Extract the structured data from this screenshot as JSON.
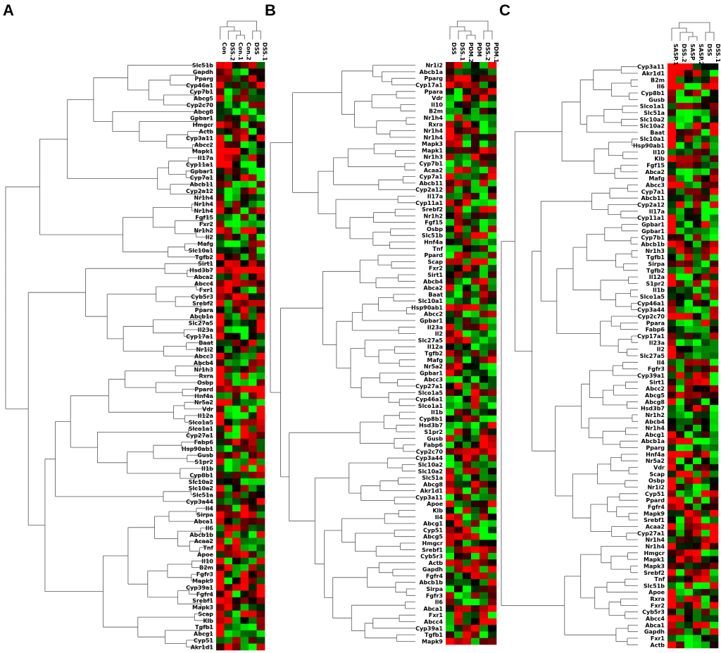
{
  "figure": {
    "panel_labels": [
      "A",
      "B",
      "C"
    ]
  },
  "colors": {
    "high": "#ff0000",
    "mid": "#000000",
    "low": "#00ff00",
    "line": "#555555",
    "text": "#000000"
  },
  "chart_data": [
    {
      "type": "heatmap",
      "panel": "A",
      "columns": [
        "Con",
        "DSS.2",
        "Con.1",
        "Con.2",
        "DSS",
        "DSS.1"
      ],
      "rows": [
        "Slc51b",
        "Gapdh",
        "Pparg",
        "Cyp46a1",
        "Cyp7b1",
        "Abcg5",
        "Cyp2c70",
        "Abcg8",
        "Gpbar1",
        "Hmgcr",
        "Actb",
        "Cyp3a11",
        "Abcc2",
        "Mapk1",
        "Il17a",
        "Cyp11a1",
        "Gpbar1",
        "Cyp7a1",
        "Abcb11",
        "Cyp2a12",
        "Nr1h4",
        "Nr1h4",
        "Nr1h4",
        "Fgf15",
        "Fxr2",
        "Nr1h2",
        "Il2",
        "Mafg",
        "Slc10a1",
        "Tgfb2",
        "Sirt1",
        "Hsd3b7",
        "Abca2",
        "Abcc4",
        "Fxr1",
        "Cyb5r3",
        "Srebf2",
        "Ppara",
        "Abcb1a",
        "Slc27a5",
        "Il23a",
        "Cyp17a1",
        "Baat",
        "Nr1i2",
        "Abcc3",
        "Abcb4",
        "Nr1h3",
        "Rxra",
        "Osbp",
        "Ppard",
        "Hnf4a",
        "Nr5a2",
        "Vdr",
        "Il12a",
        "Slco1a5",
        "Slco1a1",
        "Cyp27a1",
        "Fabp6",
        "Hsp90ab1",
        "Gusb",
        "S1pr2",
        "Il1b",
        "Cyp8b1",
        "Slc10a2",
        "Slc10a2",
        "Slc51a",
        "Cyp3a44",
        "Il4",
        "Sirpa",
        "Abca1",
        "Il6",
        "Abcb1b",
        "Acaa2",
        "Tnf",
        "Apoe",
        "Il10",
        "B2m",
        "Fgfr3",
        "Mapk9",
        "Cyp39a1",
        "Fgfr4",
        "Srebf1",
        "Mapk3",
        "Scap",
        "Klb",
        "Tgfb1",
        "Abcg1",
        "Cyp51",
        "Akr1d1"
      ]
    },
    {
      "type": "heatmap",
      "panel": "B",
      "columns": [
        "DSS",
        "DSS.1",
        "PDM.2",
        "PDM",
        "DSS.2",
        "PDM.1"
      ],
      "rows": [
        "Nr1i2",
        "Abcb1a",
        "Pparg",
        "Cyp17a1",
        "Ppara",
        "Vdr",
        "Il10",
        "B2m",
        "Nr1h4",
        "Rxra",
        "Nr1h4",
        "Nr1h4",
        "Mapk3",
        "Mapk1",
        "Nr1h3",
        "Cyp7b1",
        "Acaa2",
        "Cyp7a1",
        "Abcb11",
        "Cyp2a12",
        "Il17a",
        "Cyp11a1",
        "Srebf2",
        "Nr1h2",
        "Fgf15",
        "Osbp",
        "Slc51b",
        "Hnf4a",
        "Tnf",
        "Ppard",
        "Scap",
        "Fxr2",
        "Sirt1",
        "Abcb4",
        "Abca2",
        "Baat",
        "Slc10a1",
        "Hsp90ab1",
        "Abcc2",
        "Gpbar1",
        "Il23a",
        "Il2",
        "Slc27a5",
        "Il12a",
        "Tgfb2",
        "Mafg",
        "Nr5a2",
        "Gpbar1",
        "Abcc3",
        "Cyp27a1",
        "Slco1a5",
        "Cyp46a1",
        "Slco1a1",
        "Il1b",
        "Cyp8b1",
        "Hsd3b7",
        "S1pr2",
        "Gusb",
        "Fabp6",
        "Cyp2c70",
        "Cyp3a44",
        "Slc10a2",
        "Slc10a2",
        "Slc51a",
        "Abcg8",
        "Akr1d1",
        "Cyp3a11",
        "Apoe",
        "Klb",
        "Il4",
        "Abcg1",
        "Cyp51",
        "Abcg5",
        "Hmgcr",
        "Srebf1",
        "Cyb5r3",
        "Actb",
        "Gapdh",
        "Fgfr4",
        "Abcb1b",
        "Sirpa",
        "Fgfr3",
        "Il6",
        "Abca1",
        "Fxr1",
        "Abcc4",
        "Cyp39a1",
        "Tgfb1",
        "Mapk9"
      ]
    },
    {
      "type": "heatmap",
      "panel": "C",
      "columns": [
        "SASP.1",
        "DSS.2",
        "SASP",
        "SASP.2",
        "DSS",
        "DSS.1"
      ],
      "rows": [
        "Cyp3a11",
        "Akr1d1",
        "B2m",
        "Il6",
        "Cyp8b1",
        "Gusb",
        "Slco1a1",
        "Slc51a",
        "Slc10a2",
        "Slc10a2",
        "Baat",
        "Slc10a1",
        "Hsp90ab1",
        "Il10",
        "Klb",
        "Fgf15",
        "Abca2",
        "Mafg",
        "Abcc3",
        "Cyp7a1",
        "Abcb11",
        "Cyp2a12",
        "Il17a",
        "Cyp11a1",
        "Gpbar1",
        "Gpbar1",
        "Cyp7b1",
        "Abcb1b",
        "Nr1h3",
        "Tgfb1",
        "Sirpa",
        "Tgfb2",
        "Il12a",
        "S1pr2",
        "Il1b",
        "Slco1a5",
        "Cyp46a1",
        "Cyp3a44",
        "Cyp2c70",
        "Ppara",
        "Fabp6",
        "Cyp17a1",
        "Il23a",
        "Il2",
        "Slc27a5",
        "Il4",
        "Fgfr3",
        "Cyp39a1",
        "Sirt1",
        "Abcc2",
        "Abcg5",
        "Abcg8",
        "Hsd3b7",
        "Nr1h2",
        "Abcb4",
        "Nr1h4",
        "Abcg1",
        "Abcb1a",
        "Pparg",
        "Hnf4a",
        "Nr5a2",
        "Vdr",
        "Scap",
        "Osbp",
        "Nr1i2",
        "Cyp51",
        "Ppard",
        "Fgfr4",
        "Mapk9",
        "Srebf1",
        "Acaa2",
        "Cyp27a1",
        "Nr1h4",
        "Nr1h4",
        "Hmgcr",
        "Mapk1",
        "Mapk3",
        "Srebf2",
        "Tnf",
        "Slc51b",
        "Apoe",
        "Rxra",
        "Fxr2",
        "Cyb5r3",
        "Abcc4",
        "Abca1",
        "Gapdh",
        "Fxr1",
        "Actb"
      ]
    }
  ]
}
